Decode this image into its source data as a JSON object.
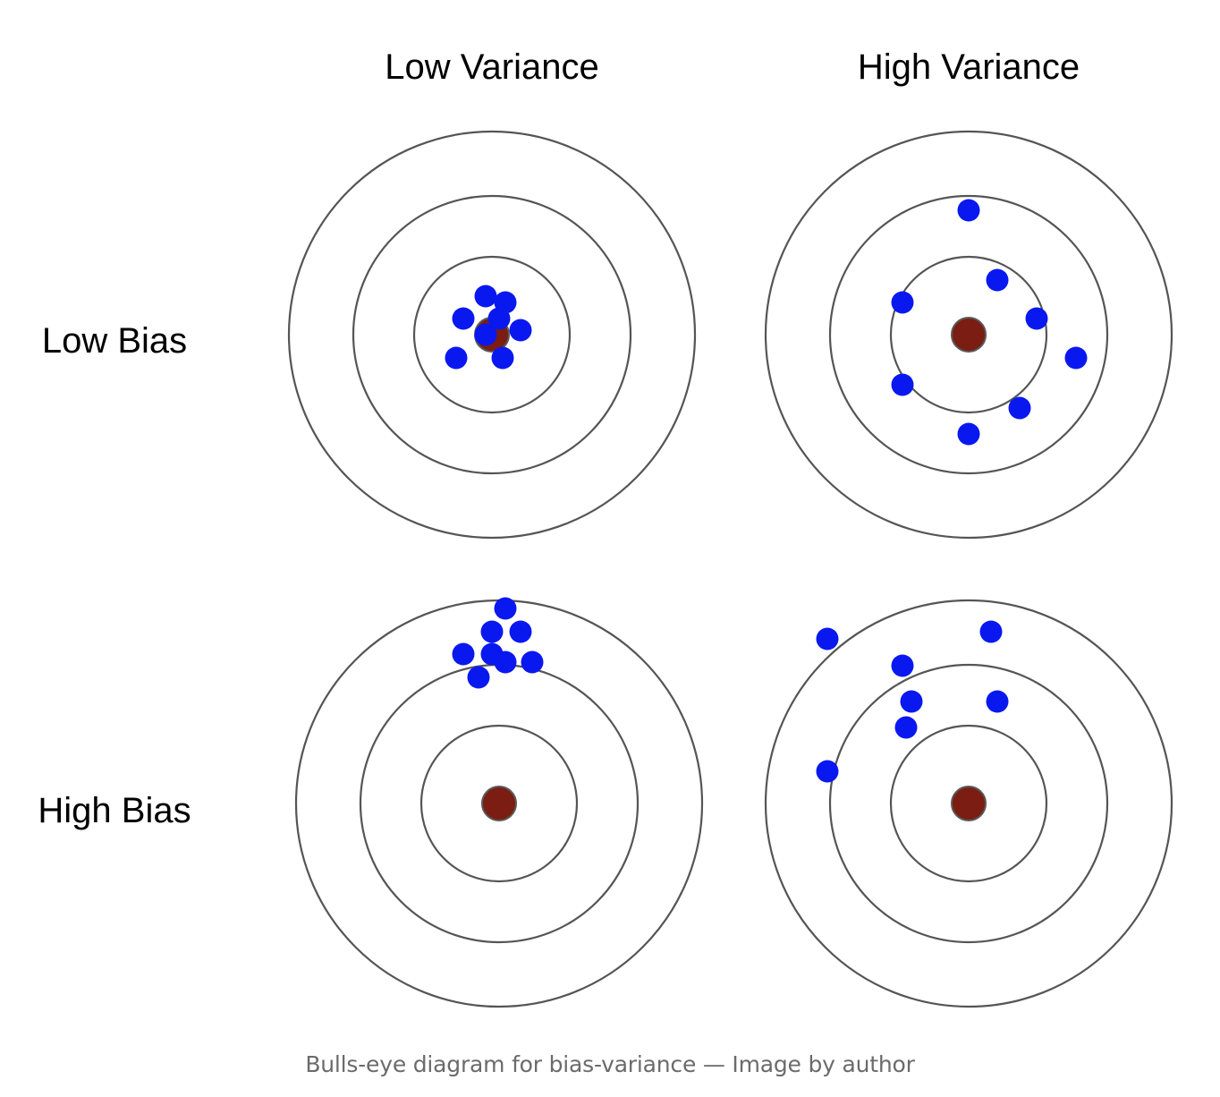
{
  "diagram": {
    "column_labels": [
      "Low Variance",
      "High Variance"
    ],
    "row_labels": [
      "Low Bias",
      "High Bias"
    ],
    "colors": {
      "ring": "#555555",
      "bullseye": "#7b1d12",
      "hit": "#0a18f0"
    },
    "targets": [
      {
        "name": "low-bias-low-variance",
        "row": 0,
        "col": 0
      },
      {
        "name": "low-bias-high-variance",
        "row": 0,
        "col": 1
      },
      {
        "name": "high-bias-low-variance",
        "row": 1,
        "col": 0
      },
      {
        "name": "high-bias-high-variance",
        "row": 1,
        "col": 1
      }
    ]
  },
  "caption": "Bulls-eye diagram for bias-variance — Image by author"
}
